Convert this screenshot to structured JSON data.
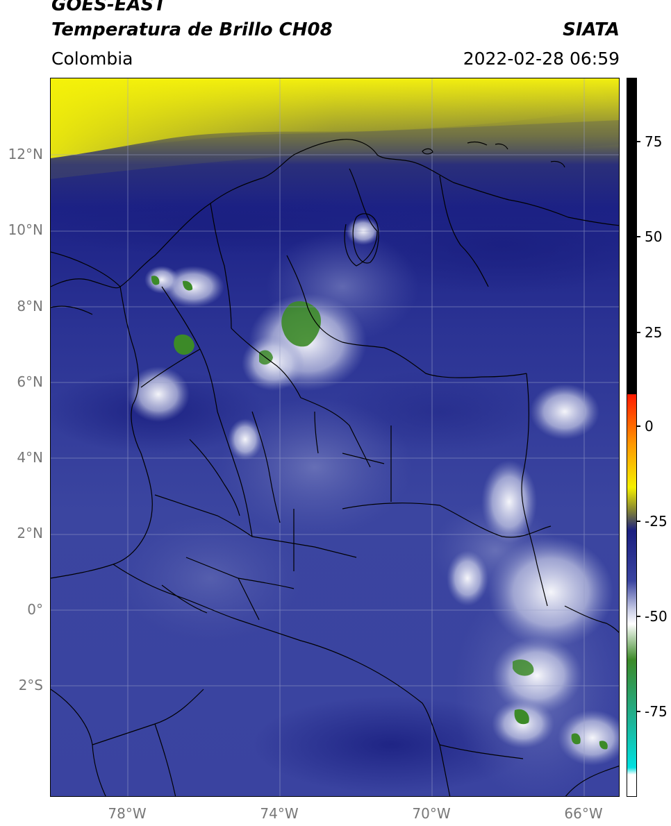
{
  "header": {
    "satellite": "GOES-EAST",
    "product": "Temperatura de Brillo CH08",
    "agency": "SIATA",
    "region": "Colombia",
    "timestamp": "2022-02-28 06:59"
  },
  "map": {
    "lat_labels": [
      "12°N",
      "10°N",
      "8°N",
      "6°N",
      "4°N",
      "2°N",
      "0°",
      "2°S"
    ],
    "lon_labels": [
      "78°W",
      "74°W",
      "70°W",
      "66°W"
    ]
  },
  "colorbar": {
    "tick_labels": [
      "75",
      "50",
      "25",
      "0",
      "-25",
      "-50",
      "-75"
    ],
    "colors": {
      "black": "#000000",
      "red": "#ff1a00",
      "orange": "#ff9900",
      "yellow": "#f5f000",
      "olive": "#8a8a30",
      "dark_blue": "#1a1f80",
      "blue": "#3a44a0",
      "lavender": "#c8cce6",
      "white": "#ffffff",
      "green": "#3c8a28",
      "teal": "#20b090",
      "cyan": "#00e0e0"
    }
  }
}
